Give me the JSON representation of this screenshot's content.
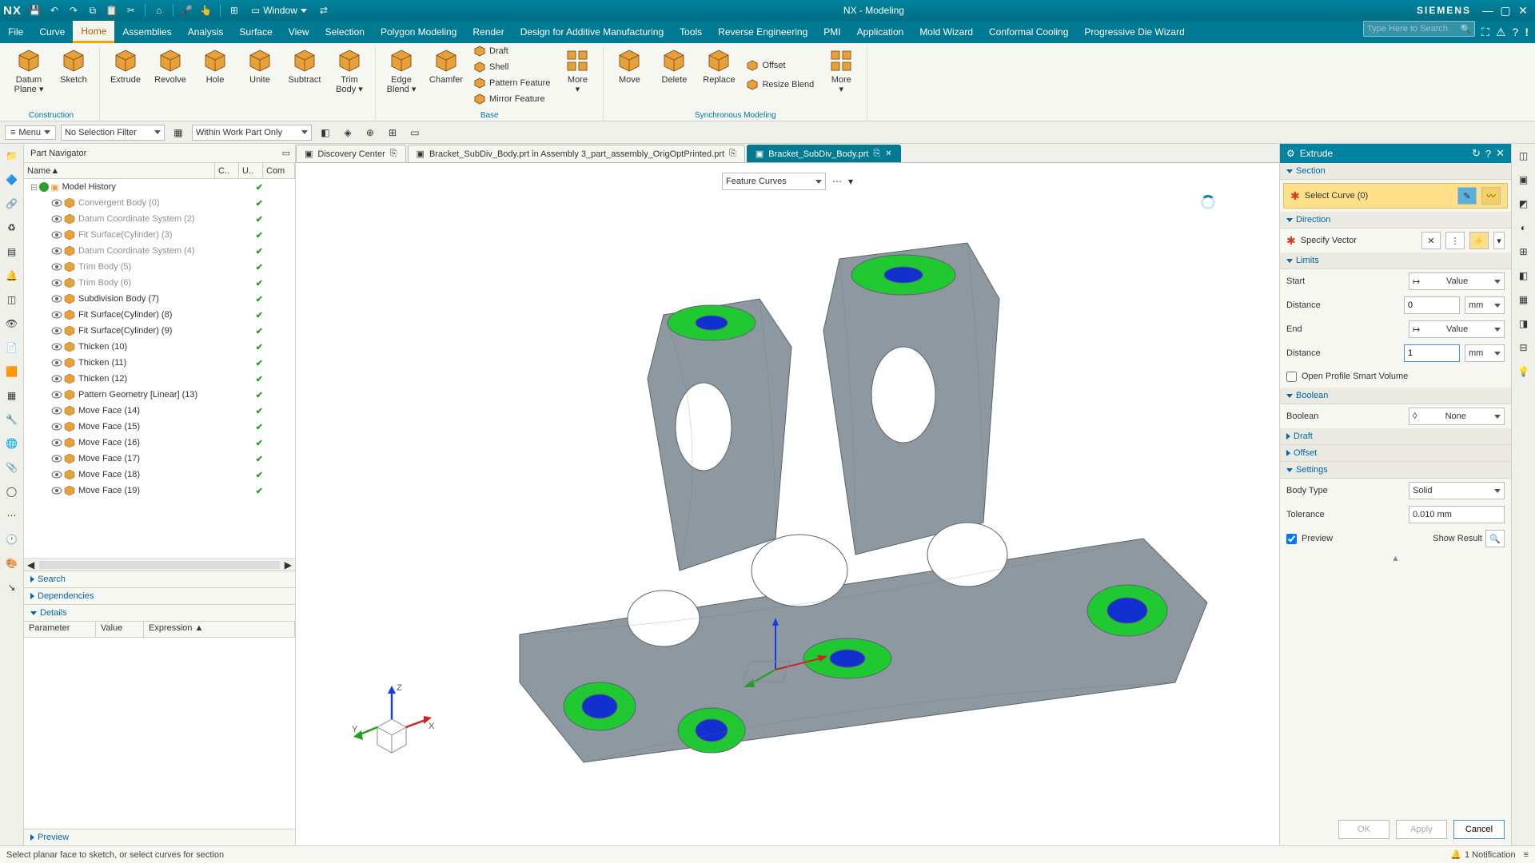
{
  "titlebar": {
    "logo": "NX",
    "window_menu": "Window",
    "title": "NX - Modeling",
    "brand": "SIEMENS"
  },
  "menubar": {
    "items": [
      "File",
      "Curve",
      "Home",
      "Assemblies",
      "Analysis",
      "Surface",
      "View",
      "Selection",
      "Polygon Modeling",
      "Render",
      "Design for Additive Manufacturing",
      "Tools",
      "Reverse Engineering",
      "PMI",
      "Application",
      "Mold Wizard",
      "Conformal Cooling",
      "Progressive Die Wizard"
    ],
    "active_index": 2,
    "search_placeholder": "Type Here to Search"
  },
  "ribbon": {
    "groups": [
      {
        "label": "Construction",
        "items_lg": [
          {
            "label": "Datum Plane ▾",
            "color": "#e8a13a"
          },
          {
            "label": "Sketch",
            "color": "#e8a13a"
          }
        ]
      },
      {
        "label": "",
        "items_lg": [
          {
            "label": "Extrude",
            "color": "#e8a13a"
          },
          {
            "label": "Revolve",
            "color": "#e8a13a"
          },
          {
            "label": "Hole",
            "color": "#e8a13a"
          },
          {
            "label": "Unite",
            "color": "#e8a13a"
          },
          {
            "label": "Subtract",
            "color": "#e8a13a"
          },
          {
            "label": "Trim Body ▾",
            "color": "#e8a13a"
          }
        ]
      },
      {
        "label": "Base",
        "items_lg": [
          {
            "label": "Edge Blend ▾",
            "color": "#e8a13a"
          },
          {
            "label": "Chamfer",
            "color": "#e8a13a"
          }
        ],
        "items_sm": [
          {
            "label": "Draft"
          },
          {
            "label": "Shell"
          },
          {
            "label": "Pattern Feature"
          },
          {
            "label": "Mirror Feature"
          }
        ],
        "more": "More"
      },
      {
        "label": "Synchronous Modeling",
        "items_lg": [
          {
            "label": "Move",
            "color": "#e8a13a"
          },
          {
            "label": "Delete",
            "color": "#e8a13a"
          },
          {
            "label": "Replace",
            "color": "#e8a13a"
          }
        ],
        "items_sm": [
          {
            "label": "Offset"
          },
          {
            "label": "Resize Blend"
          }
        ],
        "more": "More"
      }
    ]
  },
  "filterbar": {
    "menu": "Menu",
    "filter1": "No Selection Filter",
    "filter2": "Within Work Part Only"
  },
  "part_nav": {
    "title": "Part Navigator",
    "columns": [
      "Name",
      "C..",
      "U..",
      "Com"
    ],
    "root": "Model History",
    "items": [
      {
        "icon": "body",
        "label": "Convergent Body (0)",
        "dim": true
      },
      {
        "icon": "csys",
        "label": "Datum Coordinate System (2)",
        "dim": true
      },
      {
        "icon": "surf",
        "label": "Fit Surface(Cylinder) (3)",
        "dim": true
      },
      {
        "icon": "csys",
        "label": "Datum Coordinate System (4)",
        "dim": true
      },
      {
        "icon": "trim",
        "label": "Trim Body (5)",
        "dim": true
      },
      {
        "icon": "trim",
        "label": "Trim Body (6)",
        "dim": true
      },
      {
        "icon": "subd",
        "label": "Subdivision Body (7)",
        "dim": false
      },
      {
        "icon": "surf",
        "label": "Fit Surface(Cylinder) (8)",
        "dim": false
      },
      {
        "icon": "surf",
        "label": "Fit Surface(Cylinder) (9)",
        "dim": false
      },
      {
        "icon": "thick",
        "label": "Thicken (10)",
        "dim": false
      },
      {
        "icon": "thick",
        "label": "Thicken (11)",
        "dim": false
      },
      {
        "icon": "thick",
        "label": "Thicken (12)",
        "dim": false
      },
      {
        "icon": "patt",
        "label": "Pattern Geometry [Linear] (13)",
        "dim": false
      },
      {
        "icon": "move",
        "label": "Move Face (14)",
        "dim": false
      },
      {
        "icon": "move",
        "label": "Move Face (15)",
        "dim": false
      },
      {
        "icon": "move",
        "label": "Move Face (16)",
        "dim": false
      },
      {
        "icon": "move",
        "label": "Move Face (17)",
        "dim": false
      },
      {
        "icon": "move",
        "label": "Move Face (18)",
        "dim": false
      },
      {
        "icon": "move",
        "label": "Move Face (19)",
        "dim": false
      }
    ],
    "sections": [
      "Search",
      "Dependencies",
      "Details",
      "Preview"
    ],
    "details_cols": [
      "Parameter",
      "Value",
      "Expression"
    ]
  },
  "doc_tabs": [
    {
      "label": "Discovery Center",
      "active": false
    },
    {
      "label": "Bracket_SubDiv_Body.prt in Assembly 3_part_assembly_OrigOptPrinted.prt",
      "active": false
    },
    {
      "label": "Bracket_SubDiv_Body.prt",
      "active": true
    }
  ],
  "viewport": {
    "dropdown": "Feature Curves",
    "triad": {
      "x": "X",
      "y": "Y",
      "z": "Z"
    },
    "model_colors": {
      "body": "#8e98a0",
      "edge": "#5a646b",
      "pad": "#20c832",
      "hole": "#1030d0"
    }
  },
  "extrude": {
    "title": "Extrude",
    "sections": {
      "section": {
        "head": "Section",
        "select": "Select Curve (0)"
      },
      "direction": {
        "head": "Direction",
        "specify": "Specify Vector"
      },
      "limits": {
        "head": "Limits",
        "start": "Start",
        "start_val": "Value",
        "start_dist": "Distance",
        "start_dist_val": "0",
        "unit": "mm",
        "end": "End",
        "end_val": "Value",
        "end_dist": "Distance",
        "end_dist_val": "1",
        "open_profile": "Open Profile Smart Volume"
      },
      "boolean": {
        "head": "Boolean",
        "label": "Boolean",
        "value": "None"
      },
      "draft": {
        "head": "Draft"
      },
      "offset": {
        "head": "Offset"
      },
      "settings": {
        "head": "Settings",
        "body_type": "Body Type",
        "body_type_val": "Solid",
        "tolerance": "Tolerance",
        "tolerance_val": "0.010",
        "tolerance_unit": "mm"
      },
      "preview": {
        "label": "Preview",
        "show": "Show Result"
      }
    },
    "buttons": {
      "ok": "OK",
      "apply": "Apply",
      "cancel": "Cancel"
    }
  },
  "statusbar": {
    "hint": "Select planar face to sketch, or select curves for section",
    "notification": "1 Notification"
  },
  "colors": {
    "teal": "#007a93",
    "teal_dark": "#006278",
    "accent": "#ffa200",
    "panel": "#f7f7f2",
    "border": "#d0d0c8",
    "link": "#0068a6",
    "highlight": "#ffe08a",
    "green": "#2a9d2a"
  }
}
